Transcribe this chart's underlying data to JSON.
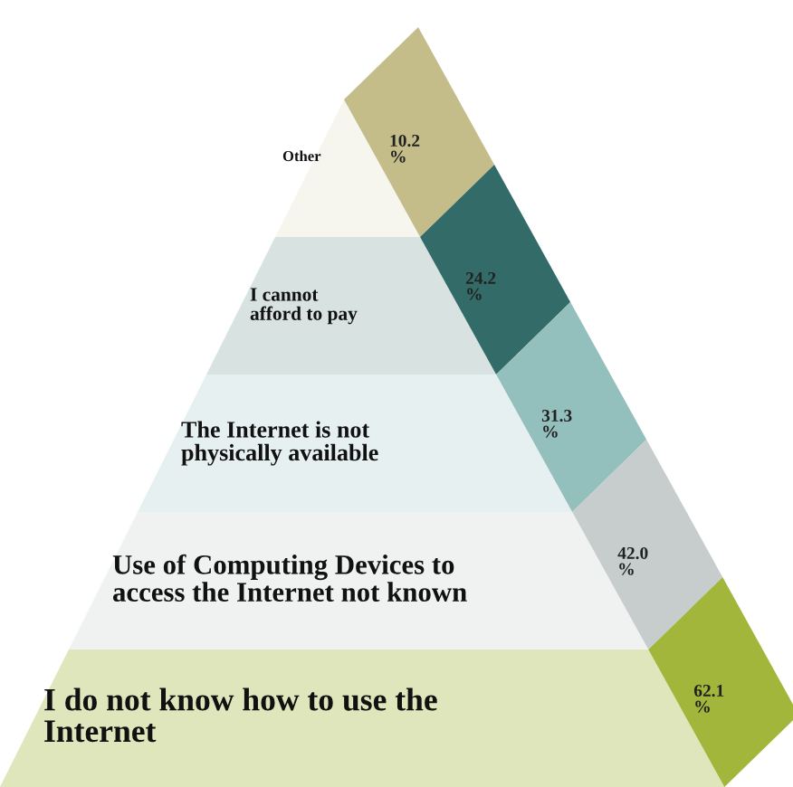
{
  "chart_data": {
    "type": "other",
    "categories": [
      "Other",
      "I cannot\nafford to pay",
      "The Internet is not\nphysically available",
      "Use of Computing Devices to\naccess the Internet not known",
      "I do not know how to use the\nInternet"
    ],
    "values": [
      10.2,
      24.2,
      31.3,
      42.0,
      62.1
    ],
    "value_labels": [
      "10.2\n%",
      "24.2\n%",
      "31.3\n%",
      "42.0\n%",
      "62.1\n%"
    ],
    "colors": [
      "#c4bd8a",
      "#336b68",
      "#93bfbc",
      "#c6cdcc",
      "#a3b63c"
    ]
  }
}
